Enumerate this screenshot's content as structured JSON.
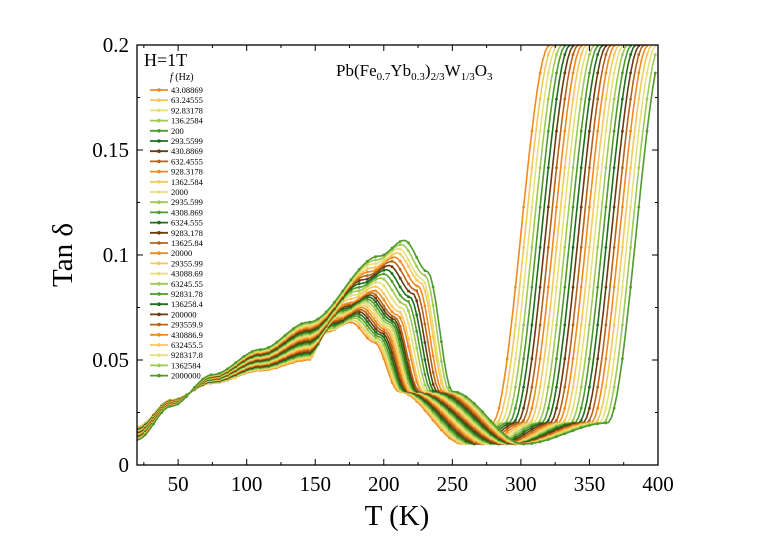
{
  "chart_data": {
    "type": "line",
    "title": "Pb(Fe0.7Yb0.3)2/3W1/3O3",
    "title_parts": {
      "pre": "Pb(Fe",
      "s1": "0.7",
      "mid1": "Yb",
      "s2": "0.3",
      "mid2": ")",
      "s3": "2/3",
      "mid3": "W",
      "s4": "1/3",
      "mid4": "O",
      "s5": "3"
    },
    "field_label": "H=1T",
    "legend_title": "f (Hz)",
    "legend_title_parts": {
      "f": "f",
      "unit": "(Hz)"
    },
    "xlabel": "T (K)",
    "ylabel": "Tan δ",
    "xlim": [
      20,
      400
    ],
    "ylim": [
      0,
      0.2
    ],
    "xticks": [
      "50",
      "100",
      "150",
      "200",
      "250",
      "300",
      "350",
      "400"
    ],
    "yticks": [
      "0",
      "0.05",
      "0.1",
      "0.15",
      "0.2"
    ],
    "legend_location": "top-left",
    "series": [
      {
        "name": "43.08869",
        "color": "#F28A1E",
        "peak_T": 176,
        "peak": 0.068,
        "min_T": 258,
        "rise_T": 321
      },
      {
        "name": "63.24555",
        "color": "#F7C85A",
        "peak_T": 177,
        "peak": 0.069,
        "min_T": 260,
        "rise_T": 324
      },
      {
        "name": "92.83178",
        "color": "#E7E07A",
        "peak_T": 178,
        "peak": 0.069,
        "min_T": 262,
        "rise_T": 327
      },
      {
        "name": "136.2584",
        "color": "#9DC955",
        "peak_T": 179,
        "peak": 0.07,
        "min_T": 264,
        "rise_T": 330
      },
      {
        "name": "200",
        "color": "#4E9A2A",
        "peak_T": 180,
        "peak": 0.071,
        "min_T": 266,
        "rise_T": 333
      },
      {
        "name": "293.5599",
        "color": "#1E6E1E",
        "peak_T": 181,
        "peak": 0.072,
        "min_T": 268,
        "rise_T": 336
      },
      {
        "name": "430.8869",
        "color": "#6B3A0E",
        "peak_T": 182,
        "peak": 0.073,
        "min_T": 270,
        "rise_T": 339
      },
      {
        "name": "632.4555",
        "color": "#B5641A",
        "peak_T": 183,
        "peak": 0.074,
        "min_T": 272,
        "rise_T": 342
      },
      {
        "name": "928.3178",
        "color": "#F28A1E",
        "peak_T": 184,
        "peak": 0.075,
        "min_T": 274,
        "rise_T": 345
      },
      {
        "name": "1362.584",
        "color": "#F7C85A",
        "peak_T": 185,
        "peak": 0.076,
        "min_T": 276,
        "rise_T": 348
      },
      {
        "name": "2000",
        "color": "#E7E07A",
        "peak_T": 186,
        "peak": 0.077,
        "min_T": 278,
        "rise_T": 351
      },
      {
        "name": "2935.599",
        "color": "#9DC955",
        "peak_T": 187,
        "peak": 0.078,
        "min_T": 280,
        "rise_T": 354
      },
      {
        "name": "4308.869",
        "color": "#4E9A2A",
        "peak_T": 188,
        "peak": 0.079,
        "min_T": 282,
        "rise_T": 357
      },
      {
        "name": "6324.555",
        "color": "#1E6E1E",
        "peak_T": 189,
        "peak": 0.08,
        "min_T": 284,
        "rise_T": 360
      },
      {
        "name": "9283.178",
        "color": "#6B3A0E",
        "peak_T": 190,
        "peak": 0.081,
        "min_T": 286,
        "rise_T": 363
      },
      {
        "name": "13625.84",
        "color": "#B5641A",
        "peak_T": 191,
        "peak": 0.082,
        "min_T": 288,
        "rise_T": 366
      },
      {
        "name": "20000",
        "color": "#F28A1E",
        "peak_T": 193,
        "peak": 0.083,
        "min_T": 290,
        "rise_T": 369
      },
      {
        "name": "29355.99",
        "color": "#F7C85A",
        "peak_T": 194,
        "peak": 0.085,
        "min_T": 291,
        "rise_T": 372
      },
      {
        "name": "43088.69",
        "color": "#E7E07A",
        "peak_T": 196,
        "peak": 0.087,
        "min_T": 292,
        "rise_T": 375
      },
      {
        "name": "63245.55",
        "color": "#9DC955",
        "peak_T": 198,
        "peak": 0.089,
        "min_T": 293,
        "rise_T": 378
      },
      {
        "name": "92831.78",
        "color": "#4E9A2A",
        "peak_T": 200,
        "peak": 0.091,
        "min_T": 294,
        "rise_T": 381
      },
      {
        "name": "136258.4",
        "color": "#1E6E1E",
        "peak_T": 202,
        "peak": 0.093,
        "min_T": 295,
        "rise_T": 384
      },
      {
        "name": "200000",
        "color": "#6B3A0E",
        "peak_T": 204,
        "peak": 0.095,
        "min_T": 296,
        "rise_T": 387
      },
      {
        "name": "293559.9",
        "color": "#B5641A",
        "peak_T": 206,
        "peak": 0.097,
        "min_T": 297,
        "rise_T": 390
      },
      {
        "name": "430886.9",
        "color": "#F28A1E",
        "peak_T": 208,
        "peak": 0.099,
        "min_T": 298,
        "rise_T": 393
      },
      {
        "name": "632455.5",
        "color": "#F7C85A",
        "peak_T": 210,
        "peak": 0.101,
        "min_T": 299,
        "rise_T": 396
      },
      {
        "name": "928317.8",
        "color": "#E7E07A",
        "peak_T": 211,
        "peak": 0.103,
        "min_T": 300,
        "rise_T": 399
      },
      {
        "name": "1362584",
        "color": "#9DC955",
        "peak_T": 213,
        "peak": 0.105,
        "min_T": 301,
        "rise_T": 402
      },
      {
        "name": "2000000",
        "color": "#4E9A2A",
        "peak_T": 215,
        "peak": 0.107,
        "min_T": 302,
        "rise_T": 405
      }
    ]
  }
}
